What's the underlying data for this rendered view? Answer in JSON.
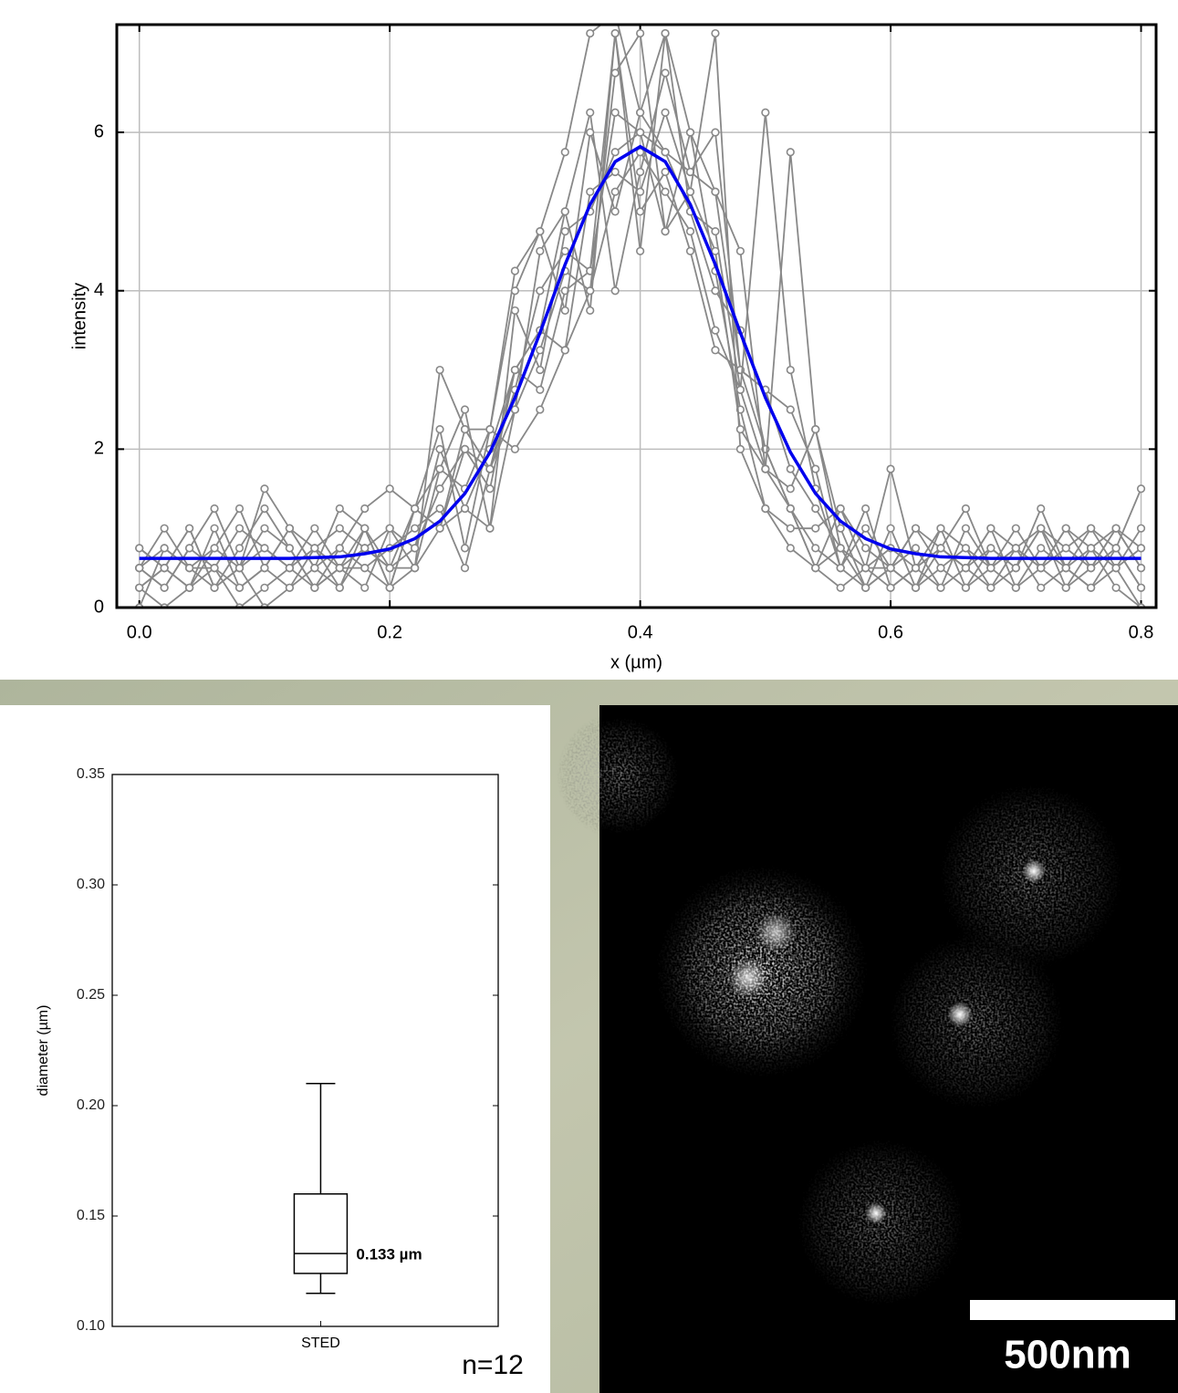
{
  "chart_data": [
    {
      "type": "line",
      "xlabel": "x (µm)",
      "ylabel": "intensity",
      "x": [
        0.0,
        0.02,
        0.04,
        0.06,
        0.08,
        0.1,
        0.12,
        0.14,
        0.16,
        0.18,
        0.2,
        0.22,
        0.24,
        0.26,
        0.28,
        0.3,
        0.32,
        0.34,
        0.36,
        0.38,
        0.4,
        0.42,
        0.44,
        0.46,
        0.48,
        0.5,
        0.52,
        0.54,
        0.56,
        0.58,
        0.6,
        0.62,
        0.64,
        0.66,
        0.68,
        0.7,
        0.72,
        0.74,
        0.76,
        0.78,
        0.8
      ],
      "xlim": [
        -0.018,
        0.812
      ],
      "xticks": [
        {
          "value": 0,
          "label": "0.0"
        },
        0.2,
        0.4,
        0.6,
        0.8
      ],
      "ylim": [
        0,
        7.36
      ],
      "yticks": [
        0,
        2,
        4,
        6
      ],
      "grid": true,
      "series": [
        {
          "color": "#888888",
          "marker": "o",
          "values": [
            0.75,
            0.5,
            0.25,
            0.5,
            1.0,
            0.75,
            0.5,
            0.25,
            0.75,
            0.5,
            0.25,
            1.25,
            1.75,
            1.5,
            2.25,
            4.25,
            4.75,
            5.75,
            7.25,
            7.5,
            6.25,
            7.25,
            6.0,
            5.25,
            3.0,
            2.0,
            1.25,
            0.5,
            0.75,
            0.25,
            0.5,
            1.0,
            0.75,
            0.5,
            0.25,
            0.5,
            1.0,
            0.75,
            0.5,
            0.75,
            1.5
          ]
        },
        {
          "color": "#888888",
          "marker": "o",
          "values": [
            0.5,
            0.25,
            0.75,
            1.25,
            0.5,
            1.5,
            1.0,
            0.5,
            0.25,
            0.75,
            1.0,
            0.5,
            3.0,
            2.25,
            1.75,
            3.0,
            3.5,
            5.0,
            6.25,
            4.0,
            5.5,
            6.75,
            5.5,
            6.0,
            3.0,
            2.75,
            1.75,
            1.25,
            0.75,
            0.5,
            1.75,
            0.5,
            0.75,
            1.25,
            0.5,
            0.75,
            1.0,
            0.5,
            0.75,
            1.0,
            0.5
          ]
        },
        {
          "color": "#888888",
          "marker": "o",
          "values": [
            0.25,
            0.5,
            1.0,
            0.25,
            0.75,
            1.25,
            0.75,
            0.25,
            0.5,
            1.0,
            0.5,
            0.75,
            2.0,
            1.25,
            1.0,
            2.5,
            3.25,
            4.25,
            4.0,
            5.25,
            5.75,
            5.25,
            4.75,
            3.5,
            2.75,
            1.75,
            1.25,
            0.5,
            0.25,
            0.5,
            0.75,
            0.5,
            0.25,
            0.5,
            0.75,
            0.5,
            1.25,
            0.5,
            0.25,
            0.75,
            0.25
          ]
        },
        {
          "color": "#888888",
          "marker": "o",
          "values": [
            0.0,
            0.75,
            0.5,
            0.25,
            0.5,
            0.0,
            0.25,
            0.75,
            1.0,
            0.75,
            0.5,
            1.25,
            1.0,
            2.0,
            1.5,
            3.0,
            2.75,
            4.0,
            4.25,
            7.25,
            4.5,
            7.25,
            5.0,
            4.0,
            3.5,
            2.0,
            1.25,
            0.75,
            0.5,
            1.0,
            0.5,
            0.25,
            1.0,
            0.75,
            0.5,
            0.25,
            0.5,
            0.75,
            1.0,
            0.5,
            0.0
          ]
        },
        {
          "color": "#888888",
          "marker": "o",
          "values": [
            0.5,
            1.0,
            0.5,
            0.75,
            1.25,
            0.5,
            0.25,
            0.5,
            0.75,
            1.25,
            1.5,
            1.25,
            2.25,
            0.75,
            2.25,
            4.0,
            4.75,
            3.75,
            6.0,
            5.0,
            6.25,
            5.75,
            5.5,
            5.25,
            4.5,
            1.75,
            1.5,
            2.25,
            0.75,
            0.5,
            0.25,
            0.5,
            0.75,
            0.5,
            1.0,
            0.75,
            0.5,
            1.0,
            0.75,
            0.5,
            0.75
          ]
        },
        {
          "color": "#888888",
          "marker": "o",
          "values": [
            0.25,
            0.0,
            0.25,
            1.0,
            0.25,
            0.5,
            1.0,
            0.5,
            1.25,
            1.0,
            0.25,
            0.5,
            1.75,
            2.5,
            1.0,
            3.75,
            3.0,
            4.75,
            5.0,
            5.75,
            6.0,
            4.75,
            6.0,
            4.25,
            2.5,
            1.25,
            0.75,
            0.5,
            1.25,
            0.75,
            0.5,
            0.75,
            0.25,
            1.0,
            0.5,
            0.75,
            0.25,
            0.5,
            1.0,
            0.75,
            0.25
          ]
        },
        {
          "color": "#888888",
          "marker": "o",
          "values": [
            0.5,
            0.25,
            0.75,
            0.5,
            0.0,
            0.25,
            0.5,
            1.0,
            0.5,
            0.25,
            1.0,
            0.75,
            1.5,
            2.0,
            1.75,
            2.5,
            4.5,
            5.0,
            3.75,
            7.25,
            5.0,
            5.5,
            4.5,
            3.25,
            3.0,
            2.75,
            2.5,
            1.75,
            0.5,
            0.25,
            1.0,
            0.25,
            0.5,
            0.25,
            0.5,
            1.0,
            0.5,
            0.25,
            0.5,
            1.0,
            0.5
          ]
        },
        {
          "color": "#888888",
          "marker": "o",
          "values": [
            0.25,
            0.5,
            0.25,
            0.75,
            0.5,
            1.0,
            0.75,
            0.25,
            0.5,
            0.5,
            0.75,
            1.0,
            1.25,
            0.5,
            1.75,
            2.75,
            4.0,
            4.5,
            4.25,
            6.25,
            6.0,
            5.75,
            5.0,
            4.75,
            2.75,
            6.25,
            3.0,
            1.5,
            0.5,
            1.25,
            0.25,
            0.5,
            1.0,
            0.25,
            0.75,
            0.5,
            1.0,
            0.25,
            0.75,
            0.25,
            0.0
          ]
        },
        {
          "color": "#888888",
          "marker": "o",
          "values": [
            0.75,
            0.5,
            1.0,
            0.25,
            0.5,
            0.75,
            0.5,
            0.75,
            0.25,
            1.0,
            0.25,
            1.25,
            1.0,
            1.25,
            2.0,
            3.0,
            3.5,
            3.25,
            4.0,
            6.75,
            7.25,
            4.75,
            5.25,
            7.25,
            2.0,
            1.25,
            1.0,
            1.0,
            1.25,
            0.5,
            0.5,
            1.0,
            0.5,
            0.75,
            0.25,
            0.75,
            0.5,
            1.0,
            0.5,
            1.0,
            0.75
          ]
        },
        {
          "color": "#888888",
          "marker": "o",
          "values": [
            0.5,
            0.75,
            0.5,
            0.5,
            0.25,
            0.5,
            1.0,
            0.75,
            0.5,
            0.75,
            0.5,
            0.5,
            1.0,
            2.25,
            2.25,
            2.0,
            2.5,
            3.25,
            5.25,
            5.5,
            5.25,
            6.25,
            5.25,
            4.5,
            2.25,
            1.75,
            5.75,
            2.25,
            1.0,
            0.25,
            0.5,
            0.25,
            0.75,
            0.5,
            1.0,
            0.25,
            0.75,
            0.5,
            0.25,
            0.5,
            1.0
          ]
        },
        {
          "color": "#0000ee",
          "values": [
            0.62,
            0.62,
            0.62,
            0.62,
            0.62,
            0.62,
            0.62,
            0.63,
            0.64,
            0.68,
            0.74,
            0.87,
            1.09,
            1.44,
            1.96,
            2.65,
            3.47,
            4.33,
            5.09,
            5.63,
            5.82,
            5.63,
            5.09,
            4.33,
            3.47,
            2.65,
            1.96,
            1.44,
            1.09,
            0.87,
            0.74,
            0.68,
            0.64,
            0.63,
            0.62,
            0.62,
            0.62,
            0.62,
            0.62,
            0.62,
            0.62
          ]
        }
      ]
    },
    {
      "type": "box",
      "ylabel": "diameter (µm)",
      "categories": [
        "STED"
      ],
      "ylim": [
        0.1,
        0.35
      ],
      "yticks": [
        {
          "value": 0.1,
          "label": "0.10"
        },
        0.15,
        {
          "value": 0.2,
          "label": "0.20"
        },
        0.25,
        {
          "value": 0.3,
          "label": "0.30"
        },
        0.35
      ],
      "color": "#000000",
      "stats": [
        {
          "whislo": 0.115,
          "q1": 0.124,
          "med": 0.133,
          "q3": 0.16,
          "whishi": 0.21,
          "med_label": "0.133 µm"
        }
      ],
      "annotation": "n=12"
    }
  ],
  "image": {
    "scale_bar_label": "500nm"
  }
}
